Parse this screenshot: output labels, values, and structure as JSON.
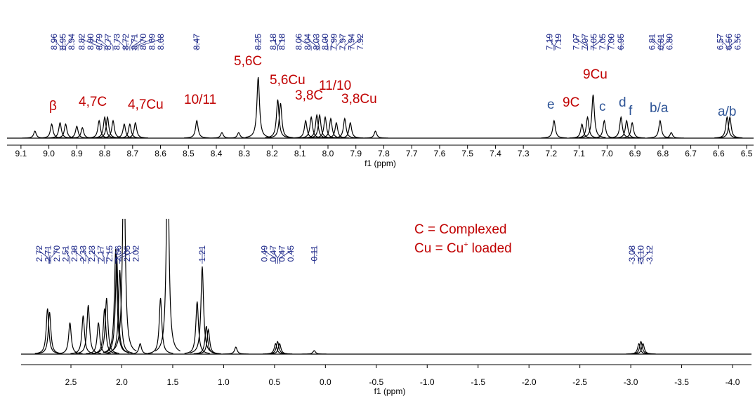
{
  "chart_data": [
    {
      "type": "spectrum",
      "xlabel": "f1 (ppm)",
      "xlim": [
        9.15,
        6.475
      ],
      "ylim": [
        0,
        100
      ],
      "color": "#000000",
      "label_color": "#1f2a8a",
      "xticks": [
        9.1,
        {
          "value": 9.0,
          "label": "9.0"
        },
        8.9,
        8.8,
        8.7,
        8.6,
        8.5,
        8.4,
        8.3,
        8.2,
        8.1,
        {
          "value": 8.0,
          "label": "8.0"
        },
        7.9,
        7.8,
        7.7,
        7.6,
        7.5,
        7.4,
        7.3,
        7.2,
        7.1,
        {
          "value": 7.0,
          "label": "7.0"
        },
        6.9,
        6.8,
        6.7,
        6.6,
        6.5
      ],
      "peaks": {
        "x": [
          9.05,
          8.99,
          8.96,
          8.94,
          8.9,
          8.88,
          8.82,
          8.8,
          8.79,
          8.77,
          8.73,
          8.71,
          8.69,
          8.47,
          8.38,
          8.32,
          8.25,
          8.18,
          8.17,
          8.08,
          8.06,
          8.04,
          8.03,
          8.01,
          7.99,
          7.97,
          7.94,
          7.92,
          7.83,
          7.19,
          7.09,
          7.07,
          7.05,
          7.01,
          6.95,
          6.93,
          6.91,
          6.81,
          6.77,
          6.57,
          6.56
        ],
        "values": [
          10,
          20,
          22,
          20,
          17,
          15,
          25,
          30,
          30,
          25,
          20,
          20,
          22,
          25,
          8,
          8,
          87,
          55,
          50,
          25,
          30,
          33,
          33,
          30,
          28,
          22,
          28,
          22,
          10,
          25,
          20,
          30,
          62,
          25,
          30,
          25,
          22,
          25,
          8,
          30,
          30
        ]
      },
      "peak_labels": [
        8.96,
        8.95,
        8.94,
        8.82,
        {
          "value": 8.8,
          "label": "8.80"
        },
        8.79,
        8.77,
        8.73,
        8.72,
        8.71,
        {
          "value": 8.7,
          "label": "8.70"
        },
        8.69,
        8.68,
        8.47,
        8.25,
        8.18,
        8.18,
        8.06,
        8.04,
        8.03,
        {
          "value": 8.0,
          "label": "8.00"
        },
        7.99,
        7.97,
        7.94,
        7.92,
        7.19,
        7.19,
        7.07,
        7.07,
        7.05,
        7.05,
        {
          "value": 7.0,
          "label": "7.00"
        },
        6.95,
        6.81,
        6.81,
        {
          "value": 6.8,
          "label": "6.80"
        },
        6.57,
        6.56,
        6.56
      ],
      "annotations": [
        {
          "text": "β",
          "color": "#c00000"
        },
        {
          "text": "4,7C",
          "color": "#c00000"
        },
        {
          "text": "4,7Cu",
          "color": "#c00000"
        },
        {
          "text": "10/11",
          "color": "#c00000"
        },
        {
          "text": "5,6C",
          "color": "#c00000"
        },
        {
          "text": "5,6Cu",
          "color": "#c00000"
        },
        {
          "text": "11/10",
          "color": "#c00000"
        },
        {
          "text": "3,8C",
          "color": "#c00000"
        },
        {
          "text": "3,8Cu",
          "color": "#c00000"
        },
        {
          "text": "9Cu",
          "color": "#c00000"
        },
        {
          "text": "9C",
          "color": "#c00000"
        },
        {
          "text": "e",
          "color": "#2f5597"
        },
        {
          "text": "c",
          "color": "#2f5597"
        },
        {
          "text": "d",
          "color": "#2f5597"
        },
        {
          "text": "f",
          "color": "#2f5597"
        },
        {
          "text": "b/a",
          "color": "#2f5597"
        },
        {
          "text": "a/b",
          "color": "#2f5597"
        }
      ]
    },
    {
      "type": "spectrum",
      "xlabel": "f1 (ppm)",
      "xlim": [
        2.99,
        -4.186
      ],
      "ylim": [
        0,
        200
      ],
      "color": "#000000",
      "label_color": "#1f2a8a",
      "xticks": [
        2.5,
        {
          "value": 2.0,
          "label": "2.0"
        },
        1.5,
        {
          "value": 1.0,
          "label": "1.0"
        },
        0.5,
        {
          "value": 0.0,
          "label": "0.0"
        },
        -0.5,
        {
          "value": -1.0,
          "label": "-1.0"
        },
        -1.5,
        {
          "value": -2.0,
          "label": "-2.0"
        },
        -2.5,
        {
          "value": -3.0,
          "label": "-3.0"
        },
        -3.5,
        {
          "value": -4.0,
          "label": "-4.0"
        }
      ],
      "peaks": {
        "x": [
          2.73,
          2.71,
          2.51,
          2.38,
          2.33,
          2.23,
          2.17,
          2.15,
          2.06,
          2.05,
          2.02,
          1.98,
          1.82,
          1.62,
          1.55,
          1.26,
          1.21,
          1.17,
          1.15,
          0.88,
          0.49,
          0.47,
          0.45,
          0.11,
          -3.08,
          -3.1,
          -3.12
        ],
        "values": [
          65,
          60,
          45,
          55,
          70,
          45,
          65,
          80,
          150,
          140,
          120,
          300,
          15,
          80,
          300,
          75,
          125,
          40,
          35,
          10,
          15,
          18,
          15,
          5,
          15,
          18,
          15
        ]
      },
      "peak_labels": [
        2.72,
        2.71,
        {
          "value": 2.7,
          "label": "2.70"
        },
        2.51,
        2.38,
        2.33,
        2.23,
        2.17,
        2.15,
        2.06,
        2.05,
        2.02,
        1.21,
        0.49,
        0.47,
        0.47,
        0.45,
        0.11,
        -3.08,
        {
          "value": -3.1,
          "label": "-3.10"
        },
        -3.12
      ],
      "annotations": [
        {
          "text": "C = Complexed",
          "color": "#c00000"
        }
      ],
      "note": {
        "text": "Cu = Cu",
        "superscript": "+",
        "rest": "loaded",
        "color": "#c00000"
      }
    }
  ]
}
